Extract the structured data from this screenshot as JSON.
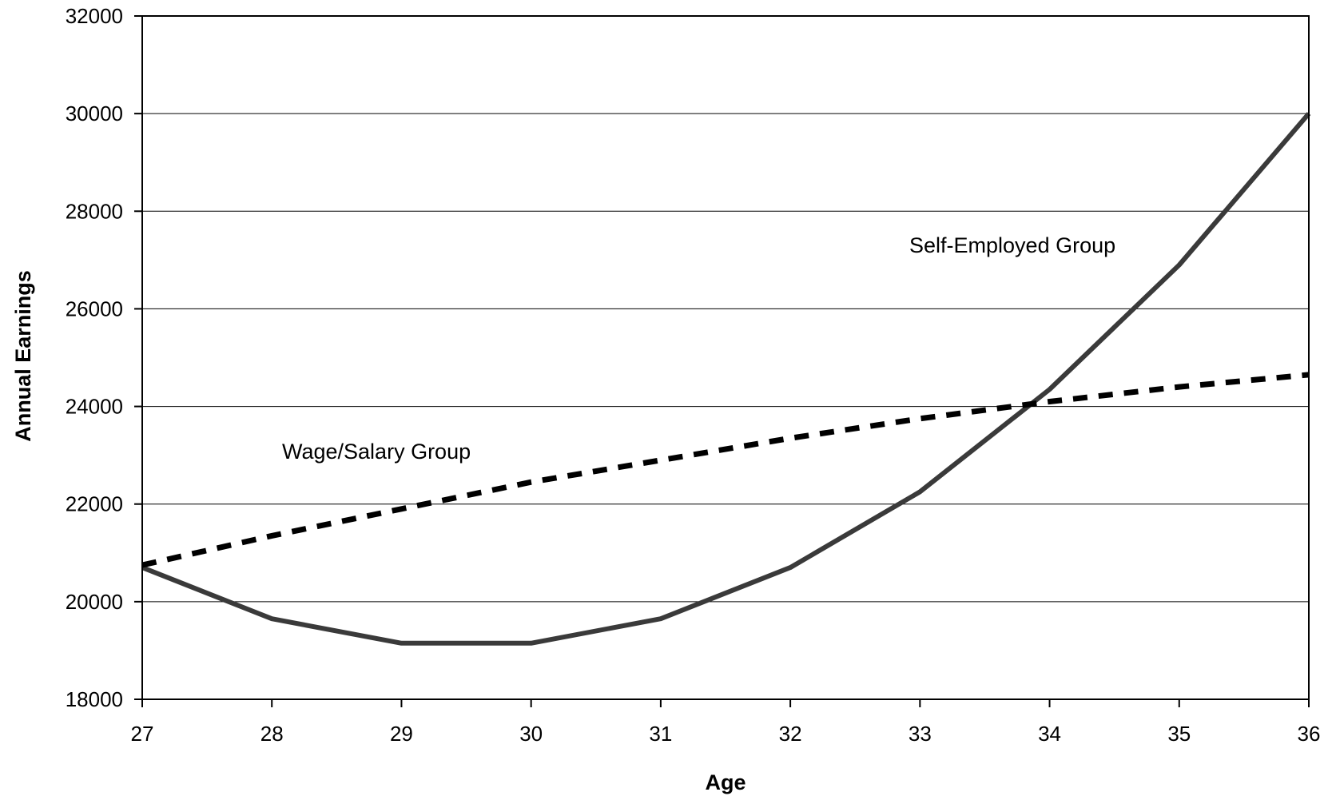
{
  "chart_data": {
    "type": "line",
    "title": "",
    "xlabel": "Age",
    "ylabel": "Annual Earnings",
    "x": [
      27,
      28,
      29,
      30,
      31,
      32,
      33,
      34,
      35,
      36
    ],
    "xlim": [
      27,
      36
    ],
    "ylim": [
      18000,
      32000
    ],
    "y_ticks": [
      18000,
      20000,
      22000,
      24000,
      26000,
      28000,
      30000,
      32000
    ],
    "grid": "horizontal",
    "legend": "none",
    "series": [
      {
        "name": "Self-Employed Group",
        "style": "solid",
        "color": "#3a3a3a",
        "values": [
          20700,
          19650,
          19150,
          19150,
          19650,
          20700,
          22250,
          24350,
          26900,
          30000
        ]
      },
      {
        "name": "Wage/Salary Group",
        "style": "dashed",
        "color": "#000000",
        "values": [
          20750,
          21350,
          21900,
          22450,
          22900,
          23350,
          23750,
          24100,
          24400,
          24650
        ]
      }
    ],
    "annotations": [
      {
        "text": "Self-Employed Group",
        "series": 0
      },
      {
        "text": "Wage/Salary Group",
        "series": 1
      }
    ]
  }
}
